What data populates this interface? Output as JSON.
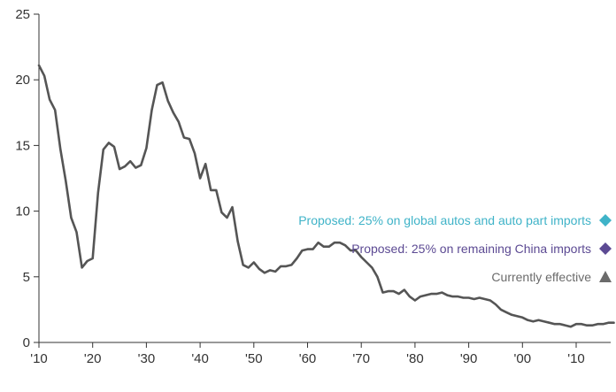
{
  "chart_data": {
    "type": "line",
    "title": "",
    "xlabel": "",
    "ylabel": "",
    "xlim": [
      1910,
      2018
    ],
    "ylim": [
      0,
      25
    ],
    "grid": false,
    "y_ticks": [
      0,
      5,
      10,
      15,
      20,
      25
    ],
    "y_tick_labels": [
      "0",
      "5",
      "10",
      "15",
      "20",
      "25"
    ],
    "x_ticks": [
      1910,
      1920,
      1930,
      1940,
      1950,
      1960,
      1970,
      1980,
      1990,
      2000,
      2010
    ],
    "x_tick_labels": [
      "'10",
      "'20",
      "'30",
      "'40",
      "'50",
      "'60",
      "'70",
      "'80",
      "'90",
      "'00",
      "'10"
    ],
    "series": [
      {
        "color": "#555555",
        "x": [
          1910,
          1911,
          1912,
          1913,
          1914,
          1915,
          1916,
          1917,
          1918,
          1919,
          1920,
          1921,
          1922,
          1923,
          1924,
          1925,
          1926,
          1927,
          1928,
          1929,
          1930,
          1931,
          1932,
          1933,
          1934,
          1935,
          1936,
          1937,
          1938,
          1939,
          1940,
          1941,
          1942,
          1943,
          1944,
          1945,
          1946,
          1947,
          1948,
          1949,
          1950,
          1951,
          1952,
          1953,
          1954,
          1955,
          1956,
          1957,
          1958,
          1959,
          1960,
          1961,
          1962,
          1963,
          1964,
          1965,
          1966,
          1967,
          1968,
          1969,
          1970,
          1971,
          1972,
          1973,
          1974,
          1975,
          1976,
          1977,
          1978,
          1979,
          1980,
          1981,
          1982,
          1983,
          1984,
          1985,
          1986,
          1987,
          1988,
          1989,
          1990,
          1991,
          1992,
          1993,
          1994,
          1995,
          1996,
          1997,
          1998,
          1999,
          2000,
          2001,
          2002,
          2003,
          2004,
          2005,
          2006,
          2007,
          2008,
          2009,
          2010,
          2011,
          2012,
          2013,
          2014,
          2015,
          2016,
          2017
        ],
        "values": [
          21.1,
          20.3,
          18.5,
          17.7,
          14.7,
          12.3,
          9.5,
          8.4,
          5.7,
          6.2,
          6.4,
          11.4,
          14.7,
          15.2,
          14.9,
          13.2,
          13.4,
          13.8,
          13.3,
          13.5,
          14.8,
          17.7,
          19.6,
          19.8,
          18.4,
          17.5,
          16.8,
          15.6,
          15.5,
          14.4,
          12.5,
          13.6,
          11.6,
          11.6,
          9.9,
          9.5,
          10.3,
          7.7,
          5.9,
          5.7,
          6.1,
          5.6,
          5.3,
          5.5,
          5.4,
          5.8,
          5.8,
          5.9,
          6.4,
          7.0,
          7.1,
          7.1,
          7.6,
          7.3,
          7.3,
          7.6,
          7.6,
          7.4,
          7.0,
          7.0,
          6.5,
          6.1,
          5.7,
          5.0,
          3.8,
          3.9,
          3.9,
          3.7,
          4.0,
          3.5,
          3.2,
          3.5,
          3.6,
          3.7,
          3.7,
          3.8,
          3.6,
          3.5,
          3.5,
          3.4,
          3.4,
          3.3,
          3.4,
          3.3,
          3.2,
          2.9,
          2.5,
          2.3,
          2.1,
          2.0,
          1.9,
          1.7,
          1.6,
          1.7,
          1.6,
          1.5,
          1.4,
          1.4,
          1.3,
          1.2,
          1.4,
          1.4,
          1.3,
          1.3,
          1.4,
          1.4,
          1.5,
          1.5
        ]
      }
    ],
    "markers": [
      {
        "label": "Proposed: 25% on global autos and auto part imports",
        "color": "#3fb3c8",
        "shape": "diamond",
        "icon": "diamond-icon"
      },
      {
        "label": "Proposed: 25% on remaining China imports",
        "color": "#5c4a93",
        "shape": "diamond",
        "icon": "diamond-icon"
      },
      {
        "label": "Currently effective",
        "color": "#6b6b6b",
        "shape": "triangle",
        "icon": "triangle-icon"
      }
    ]
  }
}
